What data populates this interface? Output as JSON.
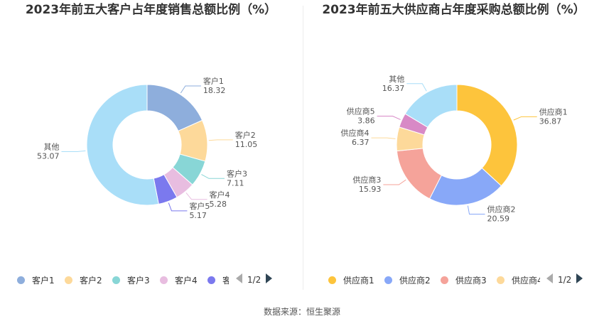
{
  "source": "数据来源：恒生聚源",
  "chart_data": [
    {
      "type": "pie",
      "title": "2023年前五大客户占年度销售总额比例（%）",
      "labels": [
        "客户1",
        "客户2",
        "客户3",
        "客户4",
        "客户5",
        "其他"
      ],
      "values": [
        18.32,
        11.05,
        7.11,
        5.28,
        5.17,
        53.07
      ],
      "value_labels": [
        "18.32",
        "11.05",
        "7.11",
        "5.28",
        "5.17",
        "53.07"
      ],
      "colors": [
        "#8eaedc",
        "#fdd99a",
        "#88d6d6",
        "#e8bde0",
        "#7b79ee",
        "#a9def8"
      ],
      "legend_labels": [
        "客户1",
        "客户2",
        "客户3",
        "客户4",
        "客"
      ],
      "legend_page": "1/2"
    },
    {
      "type": "pie",
      "title": "2023年前五大供应商占年度采购总额比例（%）",
      "labels": [
        "供应商1",
        "供应商2",
        "供应商3",
        "供应商4",
        "供应商5",
        "其他"
      ],
      "values": [
        36.87,
        20.59,
        15.93,
        6.37,
        3.86,
        16.37
      ],
      "value_labels": [
        "36.87",
        "20.59",
        "15.93",
        "6.37",
        "3.86",
        "16.37"
      ],
      "colors": [
        "#fdc43c",
        "#88a8f8",
        "#f5a39a",
        "#fdd99a",
        "#d889c6",
        "#a9def8"
      ],
      "legend_labels": [
        "供应商1",
        "供应商2",
        "供应商3",
        "供应商4"
      ],
      "legend_page": "1/2"
    }
  ]
}
